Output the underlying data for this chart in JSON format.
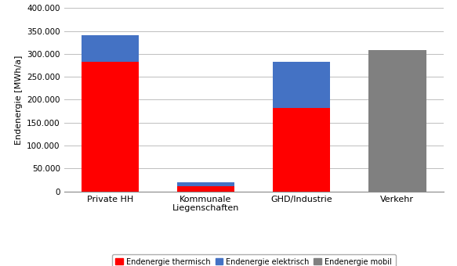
{
  "categories": [
    "Private HH",
    "Kommunale\nLiegenschaften",
    "GHD/Industrie",
    "Verkehr"
  ],
  "thermisch": [
    282000,
    12000,
    182000,
    0
  ],
  "elektrisch": [
    58000,
    8000,
    100000,
    0
  ],
  "mobil": [
    0,
    0,
    0,
    308000
  ],
  "color_thermisch": "#FF0000",
  "color_elektrisch": "#4472C4",
  "color_mobil": "#808080",
  "ylabel": "Endenergie [MWh/a]",
  "ylim": [
    0,
    400000
  ],
  "yticks": [
    0,
    50000,
    100000,
    150000,
    200000,
    250000,
    300000,
    350000,
    400000
  ],
  "ytick_labels": [
    "0",
    "50.000",
    "100.000",
    "150.000",
    "200.000",
    "250.000",
    "300.000",
    "350.000",
    "400.000"
  ],
  "legend_thermisch": "Endenergie thermisch",
  "legend_elektrisch": "Endenergie elektrisch",
  "legend_mobil": "Endenergie mobil",
  "bar_width": 0.6,
  "background_color": "#FFFFFF",
  "grid_color": "#BEBEBE"
}
